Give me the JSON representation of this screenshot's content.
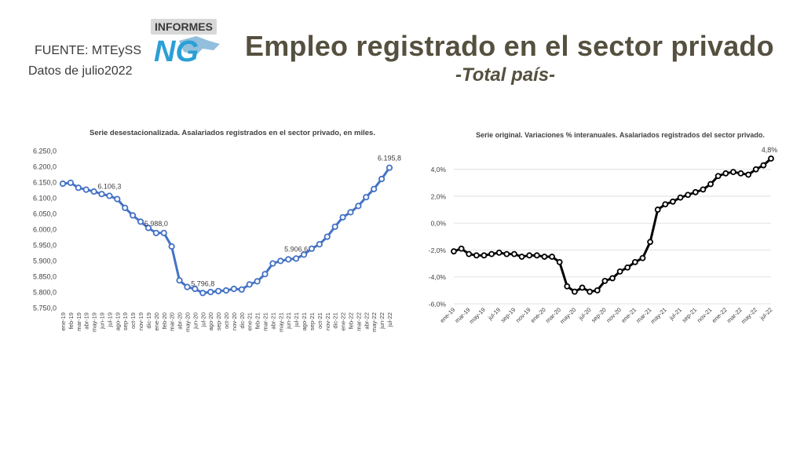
{
  "header": {
    "source": "FUENTE: MTEySS",
    "date_note": "Datos de julio2022",
    "title": "Empleo registrado en el sector privado",
    "subtitle": "-Total país-"
  },
  "logo": {
    "top_text": "INFORMES",
    "mark": "NG",
    "icon": "ng-informes-logo"
  },
  "chart_data": [
    {
      "type": "line",
      "title": "Serie desestacionalizada. Asalariados registrados en el sector privado, en miles.",
      "color": "#4472C4",
      "categories": [
        "ene-19",
        "feb-19",
        "mar-19",
        "abr-19",
        "may-19",
        "jun-19",
        "jul-19",
        "ago-19",
        "sep-19",
        "oct-19",
        "nov-19",
        "dic-19",
        "ene-20",
        "feb-20",
        "mar-20",
        "abr-20",
        "may-20",
        "jun-20",
        "jul-20",
        "ago-20",
        "sep-20",
        "oct-20",
        "nov-20",
        "dic-20",
        "ene-21",
        "feb-21",
        "mar-21",
        "abr-21",
        "may-21",
        "jun-21",
        "jul-21",
        "ago-21",
        "sep-21",
        "oct-21",
        "nov-21",
        "dic-21",
        "ene-22",
        "feb-22",
        "mar-22",
        "abr-22",
        "may-22",
        "jun-22",
        "jul-22"
      ],
      "values": [
        6145,
        6148,
        6132,
        6126,
        6120,
        6112,
        6106.3,
        6096,
        6068,
        6044,
        6024,
        6004,
        5988,
        5988,
        5945,
        5837,
        5816,
        5810,
        5796.8,
        5800,
        5803,
        5805,
        5810,
        5808,
        5824,
        5834,
        5857,
        5891,
        5899,
        5904,
        5906.6,
        5919,
        5938,
        5952,
        5976,
        6008,
        6038,
        6054,
        6074,
        6102,
        6128,
        6160,
        6195.8
      ],
      "data_labels": [
        {
          "index": 6,
          "text": "6.106,3"
        },
        {
          "index": 12,
          "text": "5.988,0"
        },
        {
          "index": 18,
          "text": "5.796,8"
        },
        {
          "index": 30,
          "text": "5.906,6"
        },
        {
          "index": 42,
          "text": "6.195,8"
        }
      ],
      "ylim": [
        5750,
        6250
      ],
      "yticks": [
        "5.750,0",
        "5.800,0",
        "5.850,0",
        "5.900,0",
        "5.950,0",
        "6.000,0",
        "6.050,0",
        "6.100,0",
        "6.150,0",
        "6.200,0",
        "6.250,0"
      ],
      "grid": false
    },
    {
      "type": "line",
      "title": "Serie original. Variaciones % interanuales. Asalariados registrados del sector privado.",
      "color": "#000000",
      "categories": [
        "ene-19",
        "feb-19",
        "mar-19",
        "abr-19",
        "may-19",
        "jun-19",
        "jul-19",
        "ago-19",
        "sep-19",
        "oct-19",
        "nov-19",
        "dic-19",
        "ene-20",
        "feb-20",
        "mar-20",
        "abr-20",
        "may-20",
        "jun-20",
        "jul-20",
        "ago-20",
        "sep-20",
        "oct-20",
        "nov-20",
        "dic-20",
        "ene-21",
        "feb-21",
        "mar-21",
        "abr-21",
        "may-21",
        "jun-21",
        "jul-21",
        "ago-21",
        "sep-21",
        "oct-21",
        "nov-21",
        "dic-21",
        "ene-22",
        "feb-22",
        "mar-22",
        "abr-22",
        "may-22",
        "jun-22",
        "jul-22"
      ],
      "tick_labels": [
        "ene-19",
        "mar-19",
        "may-19",
        "jul-19",
        "sep-19",
        "nov-19",
        "ene-20",
        "mar-20",
        "may-20",
        "jul-20",
        "sep-20",
        "nov-20",
        "ene-21",
        "mar-21",
        "may-21",
        "jul-21",
        "sep-21",
        "nov-21",
        "ene-22",
        "mar-22",
        "may-22",
        "jul-22"
      ],
      "values": [
        -2.1,
        -1.9,
        -2.3,
        -2.4,
        -2.4,
        -2.3,
        -2.2,
        -2.3,
        -2.3,
        -2.5,
        -2.4,
        -2.4,
        -2.5,
        -2.5,
        -2.9,
        -4.7,
        -5.1,
        -4.8,
        -5.1,
        -5.0,
        -4.3,
        -4.1,
        -3.6,
        -3.3,
        -2.9,
        -2.6,
        -1.4,
        1.0,
        1.4,
        1.6,
        1.9,
        2.1,
        2.3,
        2.5,
        2.9,
        3.5,
        3.7,
        3.8,
        3.7,
        3.6,
        4.0,
        4.3,
        4.8
      ],
      "data_labels": [
        {
          "index": 42,
          "text": "4,8%"
        }
      ],
      "ylim": [
        -6,
        5.5
      ],
      "yticks_values": [
        -6,
        -4,
        -2,
        0,
        2,
        4
      ],
      "yticks": [
        "-6,0%",
        "-4,0%",
        "-2,0%",
        "0,0%",
        "2,0%",
        "4,0%"
      ],
      "grid": true
    }
  ]
}
